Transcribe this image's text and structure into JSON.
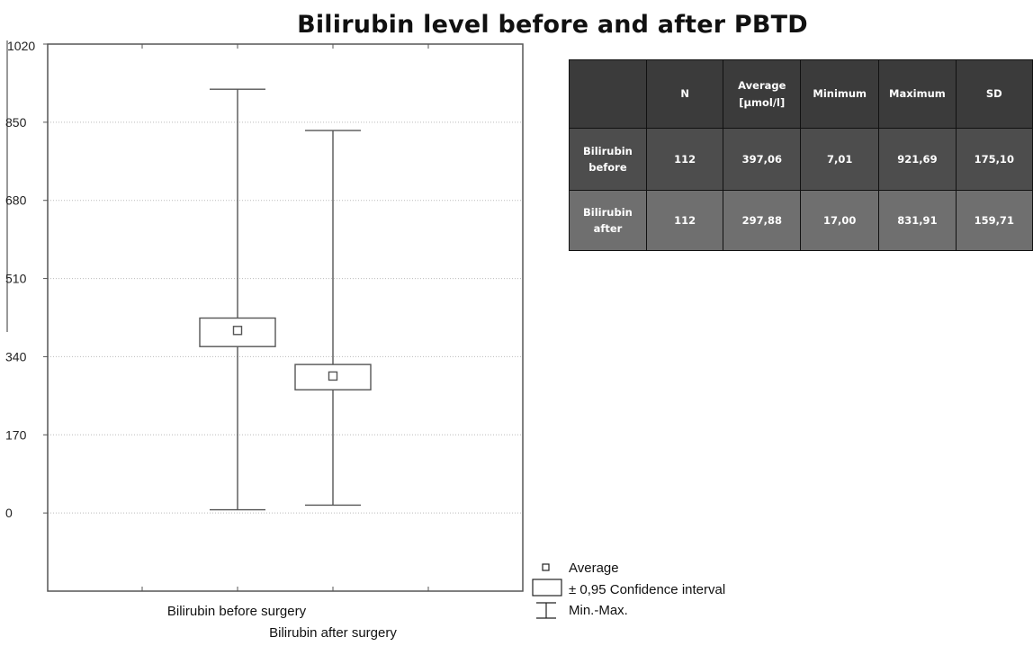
{
  "title": "Bilirubin level before and after PBTD",
  "table": {
    "headers": [
      "",
      "N",
      "Average\n[µmol/l]",
      "Minimum",
      "Maximum",
      "SD"
    ],
    "rows": [
      [
        "Bilirubin\nbefore",
        "112",
        "397,06",
        "7,01",
        "921,69",
        "175,10"
      ],
      [
        "Bilirubin\nafter",
        "112",
        "297,88",
        "17,00",
        "831,91",
        "159,71"
      ]
    ]
  },
  "legend": {
    "average": "Average",
    "ci": "± 0,95 Confidence interval",
    "minmax": "Min.-Max."
  },
  "colors": {
    "table_header": "#3b3b3b",
    "table_row_before": "#4d4d4d",
    "table_row_after": "#6f6f6f",
    "axis": "#555555",
    "grid": "#bbbbbb"
  },
  "chart_data": {
    "type": "box",
    "categories": [
      "Bilirubin before surgery",
      "Bilirubin after surgery"
    ],
    "mean": [
      397.06,
      297.88
    ],
    "ci95_low": [
      362,
      268
    ],
    "ci95_high": [
      424,
      323
    ],
    "min": [
      7.01,
      17.0
    ],
    "max": [
      921.69,
      831.91
    ],
    "yticks": [
      0,
      170,
      340,
      510,
      680,
      850,
      1020
    ],
    "ylim": [
      -170,
      1020
    ],
    "grid": true,
    "legend_position": "bottom-right"
  }
}
